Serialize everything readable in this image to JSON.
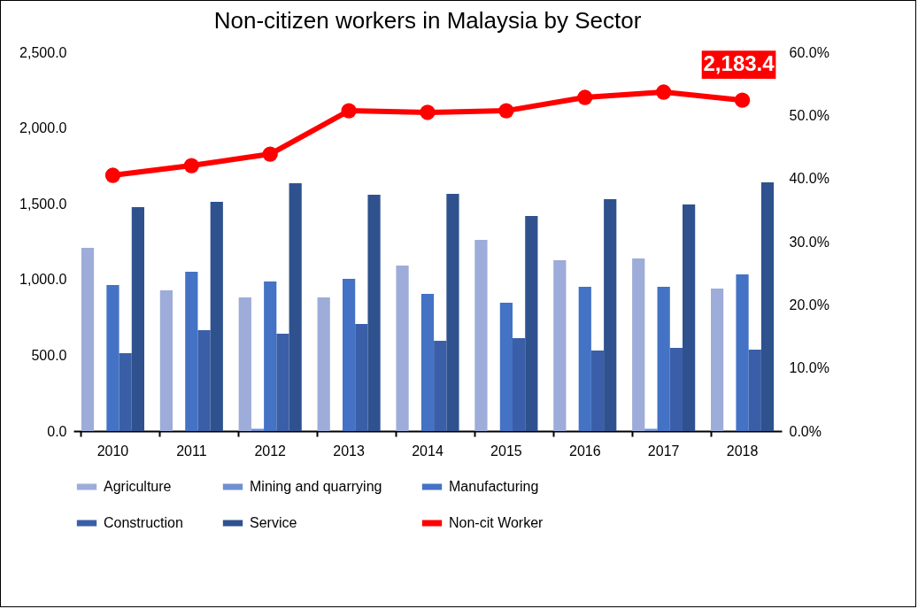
{
  "chart_data": {
    "type": "bar",
    "title": "Non-citizen workers in Malaysia by Sector",
    "categories": [
      "2010",
      "2011",
      "2012",
      "2013",
      "2014",
      "2015",
      "2016",
      "2017",
      "2018"
    ],
    "series": [
      {
        "name": "Agriculture",
        "color": "#9dacd8",
        "values": [
          1209,
          929,
          882,
          882,
          1092,
          1261,
          1127,
          1139,
          940
        ]
      },
      {
        "name": "Mining and quarrying",
        "color": "#6f8fd0",
        "values": [
          0,
          0,
          15,
          0,
          0,
          0,
          0,
          15,
          0
        ]
      },
      {
        "name": "Manufacturing",
        "color": "#4472c4",
        "values": [
          964,
          1051,
          987,
          1004,
          905,
          847,
          952,
          952,
          1034
        ]
      },
      {
        "name": "Construction",
        "color": "#3a5fa8",
        "values": [
          514,
          666,
          642,
          707,
          596,
          613,
          531,
          549,
          537
        ]
      },
      {
        "name": "Service",
        "color": "#2f528f",
        "values": [
          1478,
          1513,
          1635,
          1559,
          1565,
          1419,
          1530,
          1495,
          1641
        ]
      },
      {
        "name": "Non-cit Worker",
        "type": "line",
        "color": "#ff0000",
        "values": [
          1688,
          1752,
          1828,
          2114,
          2103,
          2114,
          2202,
          2237,
          2183.4
        ],
        "value_labels": [
          null,
          null,
          null,
          null,
          null,
          null,
          null,
          null,
          "2,183.4"
        ]
      }
    ],
    "ylim": [
      0,
      2500
    ],
    "yticks": [
      {
        "value": 0,
        "label": "0.0"
      },
      {
        "value": 500,
        "label": "500.0"
      },
      {
        "value": 1000,
        "label": "1,000.0"
      },
      {
        "value": 1500,
        "label": "1,500.0"
      },
      {
        "value": 2000,
        "label": "2,000.0"
      },
      {
        "value": 2500,
        "label": "2,500.0"
      }
    ],
    "y2lim": [
      0,
      60
    ],
    "y2ticks": [
      {
        "value": 0,
        "label": "0.0%"
      },
      {
        "value": 10,
        "label": "10.0%"
      },
      {
        "value": 20,
        "label": "20.0%"
      },
      {
        "value": 30,
        "label": "30.0%"
      },
      {
        "value": 40,
        "label": "40.0%"
      },
      {
        "value": 50,
        "label": "50.0%"
      },
      {
        "value": 60,
        "label": "60.0%"
      }
    ],
    "grid": false,
    "legend": "bottom",
    "marker": "circle",
    "line_style": "solid"
  }
}
